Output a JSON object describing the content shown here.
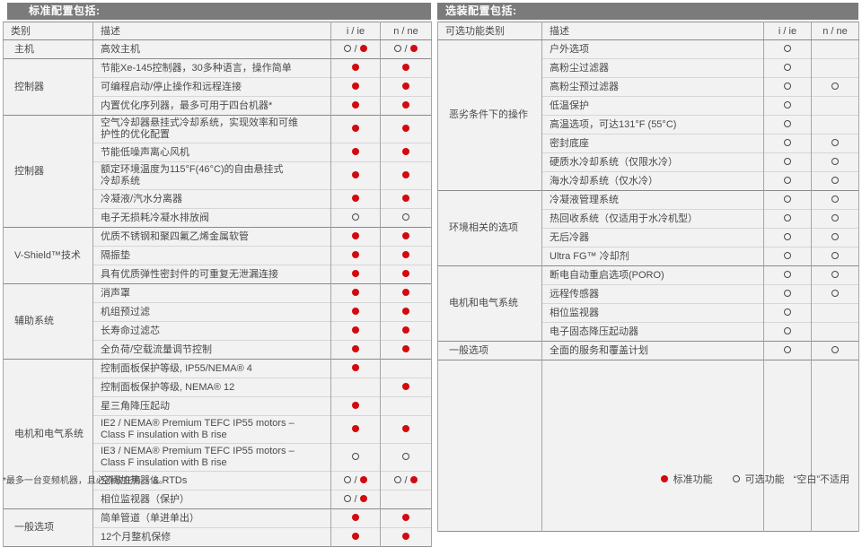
{
  "colors": {
    "accent_red": "#d20a10",
    "title_bar_bg": "#7b7b7b",
    "cell_bg": "#f2f2f2",
    "text": "#4a4a4a"
  },
  "symbols": {
    "std": "standard-feature-filled-dot",
    "opt": "optional-feature-open-circle",
    "blank": "not-applicable"
  },
  "footnote": "*最多一台变频机器，且必须放在第一位。",
  "legend": {
    "standard": "标准功能",
    "optional": "可选功能",
    "blank": "“空白”不适用"
  },
  "tables": [
    {
      "id": "standard",
      "title": "标准配置包括:",
      "columns": {
        "category": "类别",
        "description": "描述",
        "col1": "i / ie",
        "col2": "n / ne"
      },
      "groups": [
        {
          "category": "主机",
          "rows": [
            {
              "desc": "高效主机",
              "v1": "opt_std",
              "v2": "opt_std"
            }
          ]
        },
        {
          "category": "控制器",
          "rows": [
            {
              "desc": "节能Xe-145控制器，30多种语言，操作简单",
              "v1": "std",
              "v2": "std"
            },
            {
              "desc": "可编程启动/停止操作和远程连接",
              "v1": "std",
              "v2": "std"
            },
            {
              "desc": "内置优化序列器，最多可用于四台机器*",
              "v1": "std",
              "v2": "std"
            }
          ]
        },
        {
          "category": "控制器",
          "rows": [
            {
              "desc": "空气冷却器悬挂式冷却系统，实现效率和可维\n护性的优化配置",
              "v1": "std",
              "v2": "std"
            },
            {
              "desc": "节能低噪声离心风机",
              "v1": "std",
              "v2": "std"
            },
            {
              "desc": "额定环境温度为115°F(46°C)的自由悬挂式\n冷却系统",
              "v1": "std",
              "v2": "std"
            },
            {
              "desc": "冷凝液/汽水分离器",
              "v1": "std",
              "v2": "std"
            },
            {
              "desc": "电子无损耗冷凝水排放阀",
              "v1": "opt",
              "v2": "opt"
            }
          ]
        },
        {
          "category": "V-Shield™技术",
          "rows": [
            {
              "desc": "优质不锈钢和聚四氟乙烯金属软管",
              "v1": "std",
              "v2": "std"
            },
            {
              "desc": "隔振垫",
              "v1": "std",
              "v2": "std"
            },
            {
              "desc": "具有优质弹性密封件的可重复无泄漏连接",
              "v1": "std",
              "v2": "std"
            }
          ]
        },
        {
          "category": "辅助系统",
          "rows": [
            {
              "desc": "消声罩",
              "v1": "std",
              "v2": "std"
            },
            {
              "desc": "机组预过滤",
              "v1": "std",
              "v2": "std"
            },
            {
              "desc": "长寿命过滤芯",
              "v1": "std",
              "v2": "std"
            },
            {
              "desc": "全负荷/空载流量调节控制",
              "v1": "std",
              "v2": "std"
            }
          ]
        },
        {
          "category": "电机和电气系统",
          "rows": [
            {
              "desc": "控制面板保护等级, IP55/NEMA® 4",
              "v1": "std",
              "v2": ""
            },
            {
              "desc": "控制面板保护等级, NEMA® 12",
              "v1": "",
              "v2": "std"
            },
            {
              "desc": "星三角降压起动",
              "v1": "std",
              "v2": ""
            },
            {
              "desc": "IE2 / NEMA® Premium TEFC IP55 motors –\nClass F insulation with B rise",
              "v1": "std",
              "v2": "std"
            },
            {
              "desc": "IE3 / NEMA® Premium TEFC IP55 motors –\nClass F insulation with B rise",
              "v1": "opt",
              "v2": "opt"
            },
            {
              "desc": "空间加热器 & RTDs",
              "v1": "opt_std",
              "v2": "opt_std"
            },
            {
              "desc": "相位监视器（保护）",
              "v1": "opt_std",
              "v2": ""
            }
          ]
        },
        {
          "category": "一般选项",
          "rows": [
            {
              "desc": "简单管道（单进单出）",
              "v1": "std",
              "v2": "std"
            },
            {
              "desc": "12个月整机保修",
              "v1": "std",
              "v2": "std"
            }
          ]
        }
      ]
    },
    {
      "id": "optional",
      "title": "选装配置包括:",
      "columns": {
        "category": "可选功能类别",
        "description": "描述",
        "col1": "i / ie",
        "col2": "n / ne"
      },
      "groups": [
        {
          "category": "恶劣条件下的操作",
          "rows": [
            {
              "desc": "户外选项",
              "v1": "opt",
              "v2": ""
            },
            {
              "desc": "高粉尘过滤器",
              "v1": "opt",
              "v2": ""
            },
            {
              "desc": "高粉尘预过滤器",
              "v1": "opt",
              "v2": "opt"
            },
            {
              "desc": "低温保护",
              "v1": "opt",
              "v2": ""
            },
            {
              "desc": "高温选项，可达131°F (55°C)",
              "v1": "opt",
              "v2": ""
            },
            {
              "desc": "密封底座",
              "v1": "opt",
              "v2": "opt"
            },
            {
              "desc": "硬质水冷却系统（仅限水冷）",
              "v1": "opt",
              "v2": "opt"
            },
            {
              "desc": "海水冷却系统（仅水冷）",
              "v1": "opt",
              "v2": "opt"
            }
          ]
        },
        {
          "category": "环境相关的选项",
          "rows": [
            {
              "desc": "冷凝液管理系统",
              "v1": "opt",
              "v2": "opt"
            },
            {
              "desc": "热回收系统（仅适用于水冷机型）",
              "v1": "opt",
              "v2": "opt"
            },
            {
              "desc": "无后冷器",
              "v1": "opt",
              "v2": "opt"
            },
            {
              "desc": "Ultra FG™ 冷却剂",
              "v1": "opt",
              "v2": "opt"
            }
          ]
        },
        {
          "category": "电机和电气系统",
          "rows": [
            {
              "desc": "断电自动重启选项(PORO)",
              "v1": "opt",
              "v2": "opt"
            },
            {
              "desc": "远程传感器",
              "v1": "opt",
              "v2": "opt"
            },
            {
              "desc": "相位监视器",
              "v1": "opt",
              "v2": ""
            },
            {
              "desc": "电子固态降压起动器",
              "v1": "opt",
              "v2": ""
            }
          ]
        },
        {
          "category": "一般选项",
          "rows": [
            {
              "desc": "全面的服务和覆盖计划",
              "v1": "opt",
              "v2": "opt"
            }
          ]
        },
        {
          "category": "",
          "filler": true,
          "rows": [
            {
              "desc": "",
              "v1": "",
              "v2": ""
            }
          ]
        }
      ]
    }
  ]
}
